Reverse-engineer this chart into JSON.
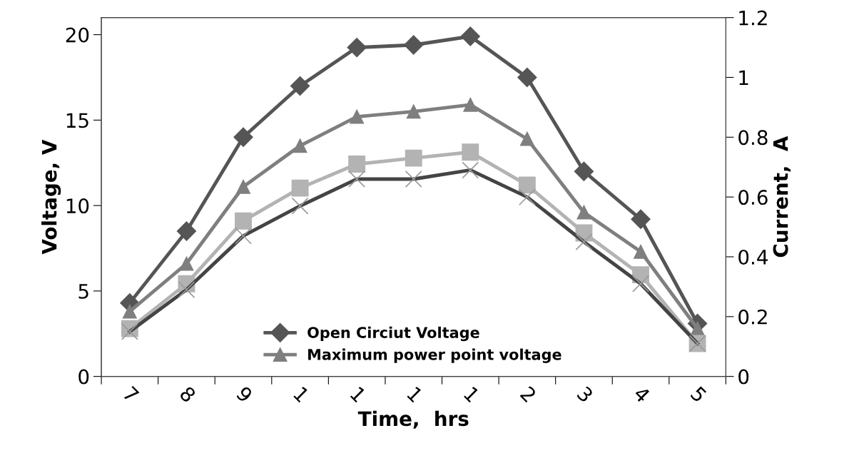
{
  "chart_data": {
    "type": "line",
    "xlabel": "Time,  hrs",
    "ylabel": "Voltage, V",
    "y2label": "Current,  A",
    "categories": [
      "7",
      "8",
      "9",
      "1",
      "1",
      "1",
      "1",
      "2",
      "3",
      "4",
      "5"
    ],
    "ylim": [
      0,
      21
    ],
    "yticks": [
      0,
      5,
      10,
      15,
      20
    ],
    "y2lim": [
      0,
      1.2
    ],
    "y2ticks": [
      0,
      0.2,
      0.4,
      0.6,
      0.8,
      1,
      1.2
    ],
    "grid": false,
    "legend": "bottom",
    "line_style": "solid",
    "series": [
      {
        "name": "Open Circiut Voltage",
        "color": "#555555",
        "marker": "diamond",
        "values": [
          4.3,
          8.5,
          14.0,
          17.0,
          19.25,
          19.4,
          19.9,
          17.5,
          12.0,
          9.2,
          3.1
        ]
      },
      {
        "name": "Maximum power point voltage",
        "color": "#7f7f7f",
        "marker": "triangle",
        "values": [
          3.8,
          6.6,
          11.1,
          13.5,
          15.2,
          15.5,
          15.9,
          13.9,
          9.6,
          7.3,
          2.8
        ]
      },
      {
        "color": "#b3b3b3",
        "marker": "square",
        "axis": "y2",
        "values": [
          0.16,
          0.31,
          0.52,
          0.63,
          0.71,
          0.73,
          0.75,
          0.64,
          0.48,
          0.34,
          0.11
        ]
      },
      {
        "color": "#444444",
        "marker": "cross",
        "axis": "y2",
        "values": [
          0.15,
          0.29,
          0.47,
          0.57,
          0.66,
          0.66,
          0.69,
          0.6,
          0.45,
          0.31,
          0.11
        ]
      }
    ]
  }
}
